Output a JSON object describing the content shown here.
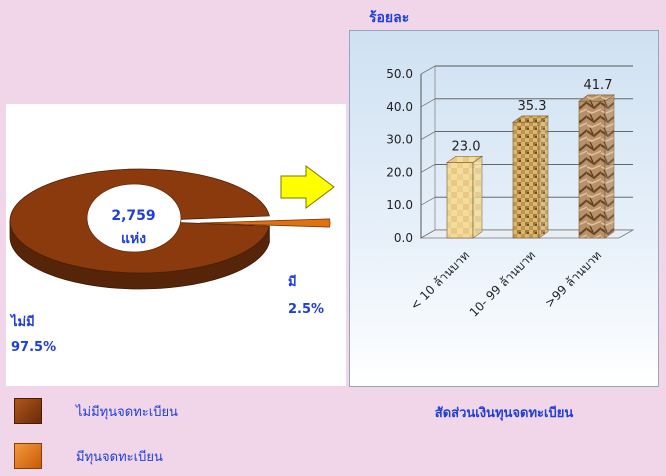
{
  "chart_data": [
    {
      "type": "pie",
      "center_label": [
        "2,759",
        "แห่ง"
      ],
      "slices": [
        {
          "label": "ไม่มี",
          "value": 97.5,
          "value_label": "97.5%",
          "color": "#8b3a0e"
        },
        {
          "label": "มี",
          "value": 2.5,
          "value_label": "2.5%",
          "color": "#e07010"
        }
      ],
      "legend": [
        {
          "label": "ไม่มีทุนจดทะเบียน",
          "color": "#8b3a0e"
        },
        {
          "label": "มีทุนจดทะเบียน",
          "color": "#e07010"
        }
      ]
    },
    {
      "type": "bar",
      "title": "สัดส่วนเงินทุนจดทะเบียน",
      "ylabel": "ร้อยละ",
      "categories": [
        "< 10 ล้านบาท",
        "10- 99 ล้านบาท",
        ">99 ล้านบาท"
      ],
      "values": [
        23.0,
        35.3,
        41.7
      ],
      "value_labels": [
        "23.0",
        "35.3",
        "41.7"
      ],
      "ylim": [
        0,
        50
      ],
      "yticks": [
        "0.0",
        "10.0",
        "20.0",
        "30.0",
        "40.0",
        "50.0"
      ],
      "grid": true
    }
  ],
  "colors": {
    "accent_text": "#1f3fd6",
    "arrow": "#ffff00"
  }
}
